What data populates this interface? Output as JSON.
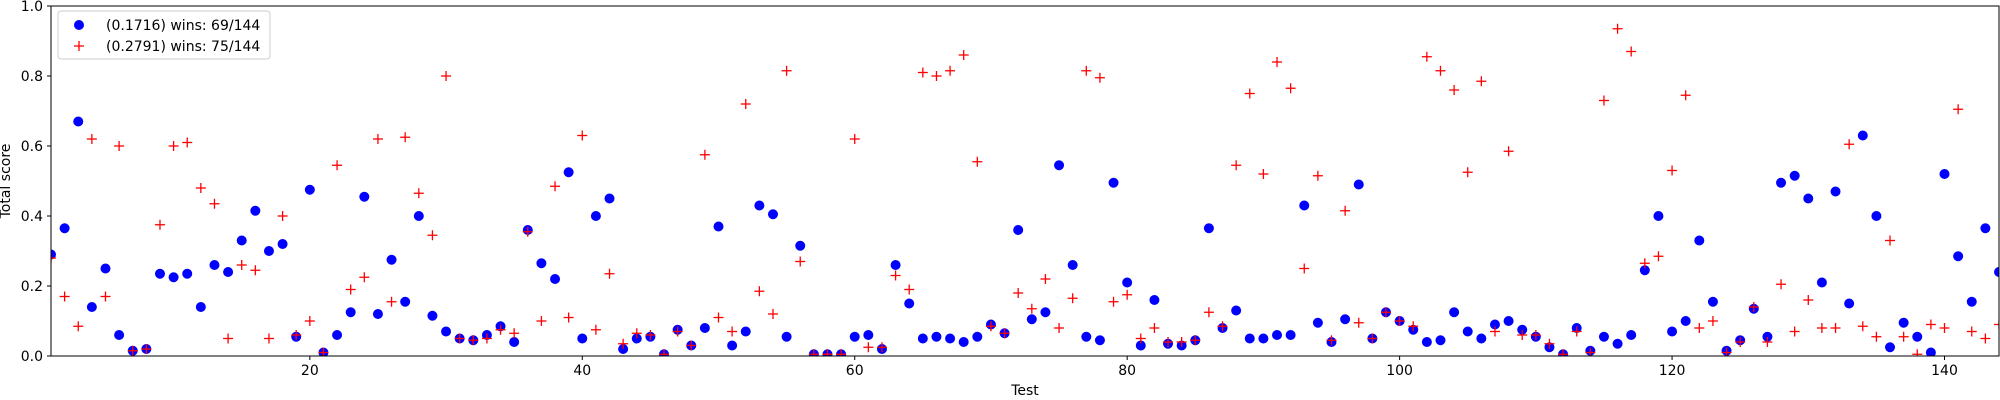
{
  "chart_data": {
    "type": "scatter",
    "xlabel": "Test",
    "ylabel": "Total score",
    "xlim": [
      1,
      144
    ],
    "ylim": [
      0,
      1.0
    ],
    "x_ticks": [
      20,
      40,
      60,
      80,
      100,
      120,
      140
    ],
    "y_ticks": [
      0.0,
      0.2,
      0.4,
      0.6,
      0.8,
      1.0
    ],
    "legend_position": "top-left",
    "series": [
      {
        "name": "(0.1716) wins: 69/144",
        "marker": "circle",
        "color": "#0000ff",
        "values": [
          0.29,
          0.365,
          0.67,
          0.14,
          0.25,
          0.06,
          0.015,
          0.02,
          0.235,
          0.225,
          0.235,
          0.14,
          0.26,
          0.24,
          0.33,
          0.415,
          0.3,
          0.32,
          0.055,
          0.475,
          0.01,
          0.06,
          0.125,
          0.455,
          0.12,
          0.275,
          0.155,
          0.4,
          0.115,
          0.07,
          0.05,
          0.045,
          0.06,
          0.085,
          0.04,
          0.36,
          0.265,
          0.22,
          0.525,
          0.05,
          0.4,
          0.45,
          0.02,
          0.05,
          0.055,
          0.005,
          0.075,
          0.03,
          0.08,
          0.37,
          0.03,
          0.07,
          0.43,
          0.405,
          0.055,
          0.315,
          0.005,
          0.005,
          0.005,
          0.055,
          0.06,
          0.02,
          0.26,
          0.15,
          0.05,
          0.055,
          0.05,
          0.04,
          0.055,
          0.09,
          0.065,
          0.36,
          0.105,
          0.125,
          0.545,
          0.26,
          0.055,
          0.045,
          0.495,
          0.21,
          0.03,
          0.16,
          0.035,
          0.03,
          0.045,
          0.365,
          0.08,
          0.13,
          0.05,
          0.05,
          0.06,
          0.06,
          0.43,
          0.095,
          0.04,
          0.105,
          0.49,
          0.05,
          0.125,
          0.1,
          0.075,
          0.04,
          0.045,
          0.125,
          0.07,
          0.05,
          0.09,
          0.1,
          0.075,
          0.055,
          0.025,
          0.005,
          0.08,
          0.015,
          0.055,
          0.035,
          0.06,
          0.245,
          0.4,
          0.07,
          0.1,
          0.33,
          0.155,
          0.015,
          0.045,
          0.135,
          0.055,
          0.495,
          0.515,
          0.45,
          0.21,
          0.47,
          0.15,
          0.63,
          0.4,
          0.025,
          0.095,
          0.055,
          0.01,
          0.52,
          0.285,
          0.155,
          0.365,
          0.24
        ]
      },
      {
        "name": "(0.2791) wins: 75/144",
        "marker": "plus",
        "color": "#ff0000",
        "values": [
          0.28,
          0.17,
          0.085,
          0.62,
          0.17,
          0.6,
          0.015,
          0.02,
          0.375,
          0.6,
          0.61,
          0.48,
          0.435,
          0.05,
          0.26,
          0.245,
          0.05,
          0.4,
          0.06,
          0.1,
          0.01,
          0.545,
          0.19,
          0.225,
          0.62,
          0.155,
          0.625,
          0.465,
          0.345,
          0.8,
          0.05,
          0.045,
          0.05,
          0.075,
          0.065,
          0.355,
          0.1,
          0.485,
          0.11,
          0.63,
          0.075,
          0.235,
          0.035,
          0.065,
          0.06,
          0.005,
          0.07,
          0.03,
          0.575,
          0.11,
          0.07,
          0.72,
          0.185,
          0.12,
          0.815,
          0.27,
          0.005,
          0.005,
          0.005,
          0.62,
          0.025,
          0.025,
          0.23,
          0.19,
          0.81,
          0.8,
          0.815,
          0.86,
          0.555,
          0.085,
          0.065,
          0.18,
          0.135,
          0.22,
          0.08,
          0.165,
          0.815,
          0.795,
          0.155,
          0.175,
          0.05,
          0.08,
          0.04,
          0.04,
          0.045,
          0.125,
          0.085,
          0.545,
          0.75,
          0.52,
          0.84,
          0.765,
          0.25,
          0.515,
          0.045,
          0.415,
          0.095,
          0.05,
          0.125,
          0.1,
          0.085,
          0.855,
          0.815,
          0.76,
          0.525,
          0.785,
          0.07,
          0.585,
          0.06,
          0.06,
          0.035,
          0.005,
          0.07,
          0.01,
          0.73,
          0.935,
          0.87,
          0.265,
          0.285,
          0.53,
          0.745,
          0.08,
          0.1,
          0.01,
          0.04,
          0.14,
          0.04,
          0.205,
          0.07,
          0.16,
          0.08,
          0.08,
          0.605,
          0.085,
          0.055,
          0.33,
          0.055,
          0.005,
          0.09,
          0.08,
          0.705,
          0.07,
          0.05,
          0.09
        ]
      }
    ]
  }
}
